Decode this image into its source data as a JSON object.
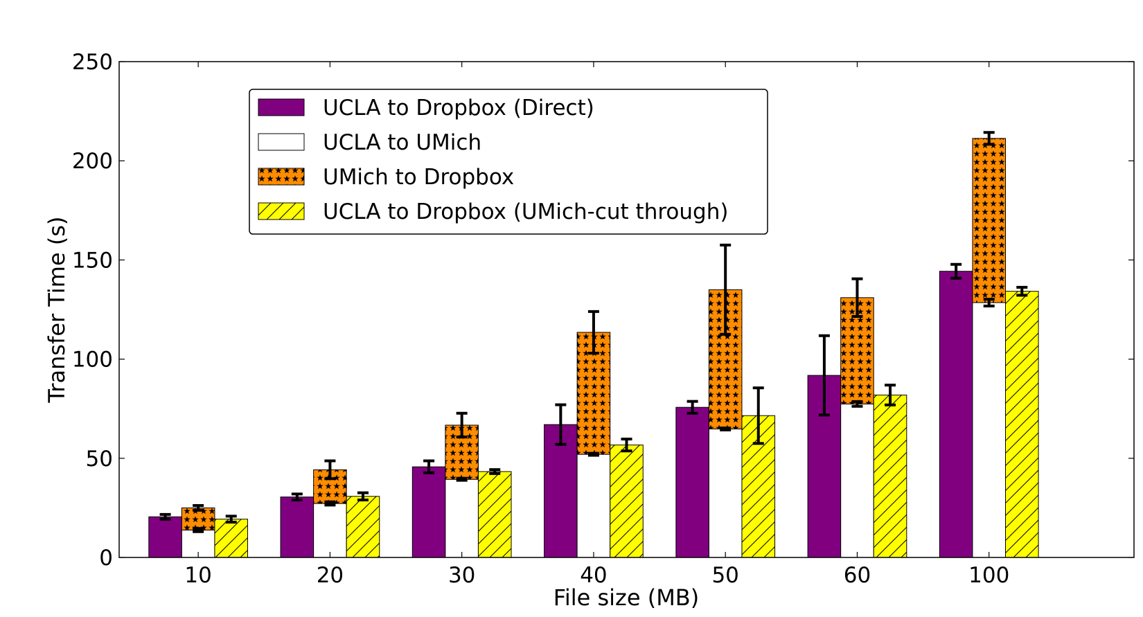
{
  "chart_data": {
    "type": "bar",
    "title": "",
    "xlabel": "File size (MB)",
    "ylabel": "Transfer Time (s)",
    "ylim": [
      0,
      250
    ],
    "yticks": [
      "0",
      "50",
      "100",
      "150",
      "200",
      "250"
    ],
    "categories": [
      "10",
      "20",
      "30",
      "40",
      "50",
      "60",
      "100"
    ],
    "grid": false,
    "legend_position": "upper-left",
    "series": [
      {
        "name": "UCLA to Dropbox (Direct)",
        "color": "#800080",
        "pattern": "solid",
        "values": [
          20.5,
          30.5,
          45.7,
          67,
          75.7,
          91.8,
          144.3
        ],
        "errors": [
          1.2,
          1.5,
          3,
          10,
          3,
          20,
          3.5
        ]
      },
      {
        "name": "UCLA to UMich",
        "color": "#ffffff",
        "pattern": "solid",
        "values": [
          13.8,
          27.2,
          39.4,
          52,
          64.8,
          77.4,
          128.5
        ],
        "errors": [
          0.8,
          0.8,
          0.5,
          0.5,
          0.5,
          1.2,
          1.7
        ]
      },
      {
        "name": "UMich to Dropbox",
        "color": "#ff8c00",
        "pattern": "stars",
        "stacked_on": "UCLA to UMich",
        "values": [
          11.2,
          17,
          27.3,
          61.5,
          70.2,
          53.6,
          82.8
        ],
        "errors": [
          1.2,
          4.5,
          6,
          10.5,
          22.5,
          9.5,
          3
        ]
      },
      {
        "name": "UCLA to Dropbox (UMich-cut through)",
        "color": "#ffff00",
        "pattern": "hatch",
        "values": [
          19.3,
          30.8,
          43.3,
          56.7,
          71.5,
          81.9,
          134.2
        ],
        "errors": [
          1.5,
          1.8,
          1,
          3,
          14,
          5,
          2
        ]
      }
    ]
  }
}
